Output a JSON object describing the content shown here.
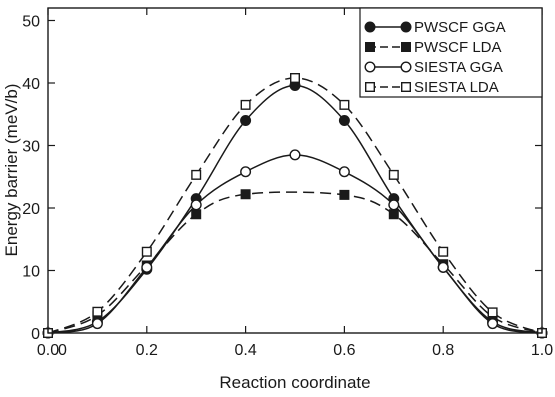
{
  "chart_data": {
    "type": "line",
    "xlabel": "Reaction coordinate",
    "ylabel": "Energy barrier (meV/b)",
    "xlim": [
      0.0,
      1.0
    ],
    "ylim": [
      0,
      52
    ],
    "x_ticks": [
      0.0,
      0.2,
      0.4,
      0.6,
      0.8,
      1.0
    ],
    "x_tick_labels": [
      "0.0",
      "0.2",
      "0.4",
      "0.6",
      "0.8",
      "1.0"
    ],
    "y_ticks": [
      0,
      10,
      20,
      30,
      40,
      50
    ],
    "y_tick_labels": [
      "0",
      "10",
      "20",
      "30",
      "40",
      "50"
    ],
    "origin_label": "0",
    "grid": false,
    "legend_position": "top-right",
    "x": [
      0.0,
      0.1,
      0.2,
      0.3,
      0.4,
      0.5,
      0.6,
      0.7,
      0.8,
      0.9,
      1.0
    ],
    "series": [
      {
        "name": "PWSCF GGA",
        "line_style": "solid",
        "marker": "filled-circle",
        "values": [
          0.0,
          1.8,
          10.2,
          21.5,
          34.0,
          39.6,
          34.0,
          21.5,
          10.5,
          1.8,
          0.0
        ]
      },
      {
        "name": "PWSCF LDA",
        "line_style": "dashed",
        "marker": "filled-square",
        "values": [
          0.0,
          2.8,
          10.8,
          19.0,
          22.2,
          null,
          22.1,
          19.0,
          11.0,
          2.6,
          0.0
        ]
      },
      {
        "name": "SIESTA GGA",
        "line_style": "solid",
        "marker": "open-circle",
        "values": [
          0.0,
          1.5,
          10.5,
          20.5,
          25.8,
          28.5,
          25.8,
          20.5,
          10.5,
          1.5,
          0.0
        ]
      },
      {
        "name": "SIESTA LDA",
        "line_style": "dashed",
        "marker": "open-square",
        "values": [
          0.0,
          3.4,
          13.0,
          25.3,
          36.5,
          40.8,
          36.5,
          25.3,
          13.0,
          3.3,
          0.0
        ]
      }
    ]
  }
}
